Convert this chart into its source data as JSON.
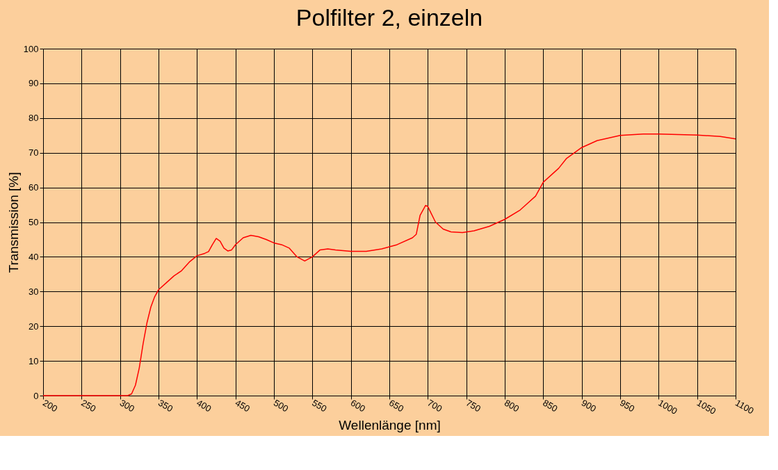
{
  "chart_data": {
    "type": "line",
    "title": "Polfilter 2, einzeln",
    "xlabel": "Wellenlänge [nm]",
    "ylabel": "Transmission [%]",
    "xlim": [
      200,
      1100
    ],
    "xticks": [
      200,
      250,
      300,
      350,
      400,
      450,
      500,
      550,
      600,
      650,
      700,
      750,
      800,
      850,
      900,
      950,
      1000,
      1050,
      1100
    ],
    "ylim": [
      0,
      100
    ],
    "yticks": [
      0,
      10,
      20,
      30,
      40,
      50,
      60,
      70,
      80,
      90,
      100
    ],
    "grid": true,
    "marker": "none",
    "line_style": "solid",
    "series": [
      {
        "color": "#ff0000",
        "x": [
          200,
          250,
          300,
          310,
          315,
          320,
          325,
          330,
          335,
          340,
          345,
          350,
          360,
          370,
          380,
          390,
          400,
          410,
          415,
          420,
          425,
          430,
          435,
          440,
          445,
          450,
          460,
          470,
          480,
          490,
          500,
          510,
          520,
          530,
          540,
          550,
          560,
          570,
          580,
          600,
          620,
          640,
          660,
          680,
          685,
          690,
          697,
          700,
          710,
          720,
          730,
          745,
          760,
          780,
          800,
          820,
          840,
          850,
          860,
          870,
          880,
          900,
          920,
          950,
          980,
          1000,
          1050,
          1080,
          1100
        ],
        "values": [
          0,
          0,
          0,
          0,
          0.5,
          3,
          8,
          15,
          21,
          25.5,
          28.5,
          30.5,
          32.5,
          34.5,
          36,
          38.5,
          40.3,
          41,
          41.5,
          43.5,
          45.3,
          44.5,
          42.5,
          41.7,
          42,
          43.5,
          45.5,
          46.2,
          45.8,
          45,
          44,
          43.5,
          42.5,
          40,
          38.8,
          40,
          42,
          42.3,
          42,
          41.6,
          41.6,
          42.3,
          43.5,
          45.5,
          46.5,
          52,
          54.8,
          54.5,
          50,
          48,
          47.2,
          47,
          47.5,
          48.8,
          50.8,
          53.5,
          57.5,
          61.5,
          63.5,
          65.5,
          68.3,
          71.5,
          73.5,
          75,
          75.4,
          75.4,
          75.1,
          74.7,
          74
        ]
      }
    ]
  }
}
